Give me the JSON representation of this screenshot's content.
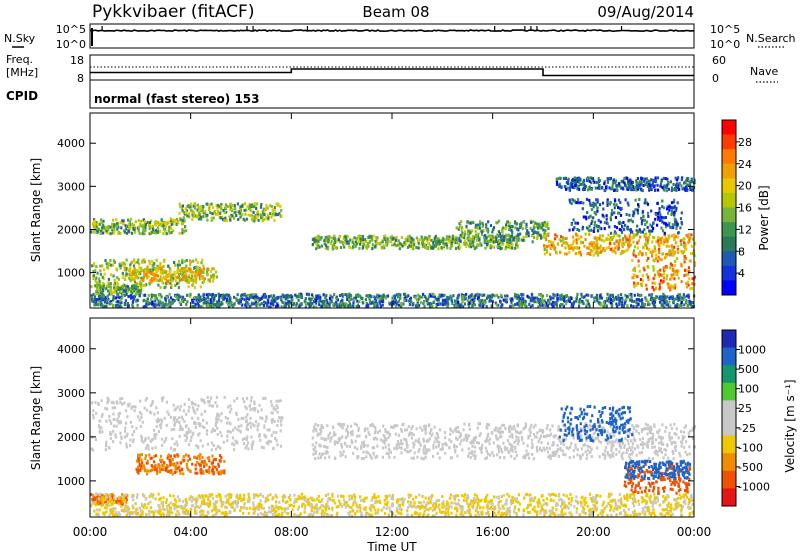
{
  "header": {
    "title": "Pykkvibaer (fitACF)",
    "beam": "Beam 08",
    "date": "09/Aug/2014"
  },
  "noise_panel": {
    "left_label": "N.Sky",
    "left_ticks": [
      "10^5",
      "10^0"
    ],
    "right_label": "N.Search",
    "right_ticks": [
      "10^5",
      "10^0"
    ]
  },
  "freq_panel": {
    "left_label_1": "Freq.",
    "left_label_2": "[MHz]",
    "left_ticks": [
      "18",
      "8"
    ],
    "right_label": "Nave",
    "right_ticks": [
      "60",
      "0"
    ]
  },
  "cpid_panel": {
    "label": "CPID",
    "mode": "normal (fast stereo) 153"
  },
  "x_axis": {
    "label": "Time UT",
    "ticks": [
      "00:00",
      "04:00",
      "08:00",
      "12:00",
      "16:00",
      "20:00",
      "00:00"
    ]
  },
  "power_colorbar": {
    "label": "Power [dB]",
    "ticks": [
      "28",
      "24",
      "20",
      "16",
      "12",
      "8",
      "4"
    ],
    "colors": [
      "#ff0000",
      "#ff3c00",
      "#ff7a00",
      "#f0a000",
      "#e8c800",
      "#b4c800",
      "#78b43c",
      "#3c9650",
      "#2a7a5a",
      "#1e5ab4",
      "#1432dc",
      "#0000ff"
    ]
  },
  "velocity_colorbar": {
    "label": "Velocity [m s⁻¹]",
    "ticks": [
      "1000",
      "500",
      "100",
      "25",
      "-25",
      "-100",
      "-500",
      "-1000"
    ],
    "colors": [
      "#1e28b4",
      "#1e64c8",
      "#14966e",
      "#50c832",
      "#c8c8c8",
      "#c8c8c8",
      "#f0c800",
      "#f08c00",
      "#f05000",
      "#e61414"
    ]
  },
  "chart_data": [
    {
      "type": "heatmap",
      "panel": "power",
      "ylabel": "Slant Range [km]",
      "xlabel": "Time UT",
      "y_ticks": [
        1000,
        2000,
        3000,
        4000
      ],
      "ylim": [
        180,
        4700
      ],
      "xlim_hours": [
        0,
        24
      ],
      "colorbar_range_db": [
        0,
        32
      ],
      "blobs": [
        {
          "t": [
            0.0,
            3.8
          ],
          "r0": 1900,
          "r1": 2250,
          "dbmid": 14
        },
        {
          "t": [
            3.5,
            7.6
          ],
          "r0": 2200,
          "r1": 2600,
          "dbmid": 14
        },
        {
          "t": [
            0.0,
            4.5
          ],
          "r0": 650,
          "r1": 1300,
          "dbmid": 16
        },
        {
          "t": [
            1.5,
            5.0
          ],
          "r0": 800,
          "r1": 1100,
          "dbmid": 20
        },
        {
          "t": [
            0.2,
            2.0
          ],
          "r0": 500,
          "r1": 700,
          "dbmid": 12
        },
        {
          "t": [
            8.8,
            17.0
          ],
          "r0": 1550,
          "r1": 1850,
          "dbmid": 14
        },
        {
          "t": [
            14.5,
            18.2
          ],
          "r0": 1700,
          "r1": 2200,
          "dbmid": 12
        },
        {
          "t": [
            18.0,
            24.0
          ],
          "r0": 1400,
          "r1": 1900,
          "dbmid": 22
        },
        {
          "t": [
            21.5,
            24.0
          ],
          "r0": 600,
          "r1": 1400,
          "dbmid": 24
        },
        {
          "t": [
            18.5,
            24.0
          ],
          "r0": 2900,
          "r1": 3200,
          "dbmid": 6
        },
        {
          "t": [
            19.0,
            23.5
          ],
          "r0": 1900,
          "r1": 2700,
          "dbmid": 6
        },
        {
          "t": [
            0.0,
            24.0
          ],
          "r0": 200,
          "r1": 500,
          "dbmid": 8
        }
      ]
    },
    {
      "type": "heatmap",
      "panel": "velocity",
      "ylabel": "Slant Range [km]",
      "xlabel": "Time UT",
      "y_ticks": [
        1000,
        2000,
        3000,
        4000
      ],
      "ylim": [
        180,
        4700
      ],
      "xlim_hours": [
        0,
        24
      ],
      "colorbar_range": [
        -1000,
        1000
      ],
      "blobs": [
        {
          "t": [
            0.0,
            7.6
          ],
          "r0": 1700,
          "r1": 2900,
          "vel": 0
        },
        {
          "t": [
            8.8,
            24.0
          ],
          "r0": 1500,
          "r1": 2300,
          "vel": 0
        },
        {
          "t": [
            1.8,
            5.3
          ],
          "r0": 1150,
          "r1": 1600,
          "vel": -300
        },
        {
          "t": [
            0.0,
            1.5
          ],
          "r0": 450,
          "r1": 700,
          "vel": -300
        },
        {
          "t": [
            18.6,
            21.5
          ],
          "r0": 1900,
          "r1": 2700,
          "vel": 600
        },
        {
          "t": [
            21.2,
            23.8
          ],
          "r0": 700,
          "r1": 1400,
          "vel": -600
        },
        {
          "t": [
            21.2,
            23.8
          ],
          "r0": 1050,
          "r1": 1450,
          "vel": 600
        },
        {
          "t": [
            0.0,
            24.0
          ],
          "r0": 200,
          "r1": 700,
          "vel": -30
        }
      ]
    }
  ]
}
